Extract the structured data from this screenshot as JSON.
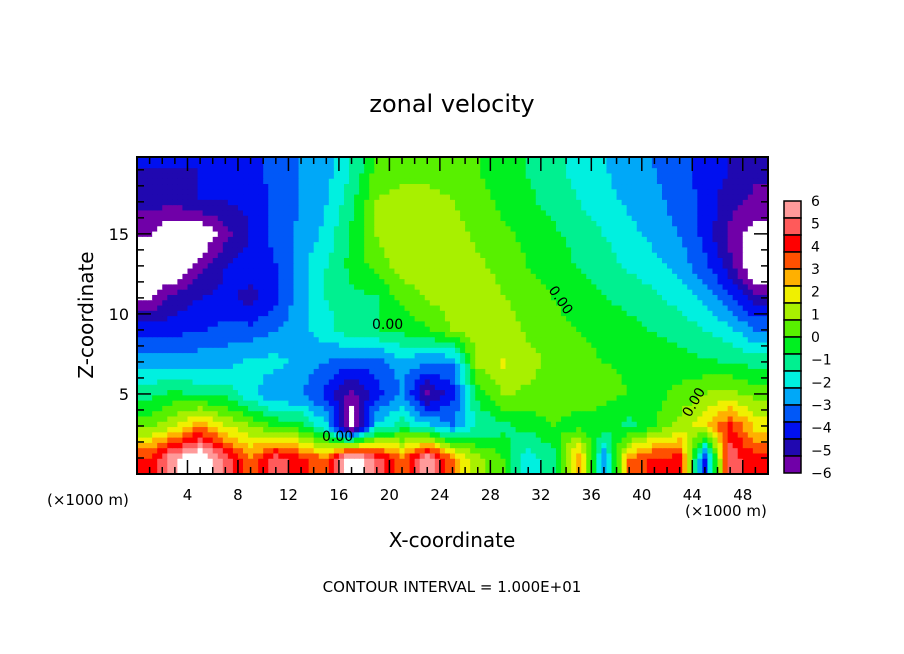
{
  "chart_data": {
    "type": "heatmap",
    "title": "zonal velocity",
    "xlabel": "X-coordinate",
    "ylabel": "Z-coordinate",
    "x_units": "(×1000 m)",
    "y_units": "(×1000 m)",
    "footnote": "CONTOUR INTERVAL = 1.000E+01",
    "xlim": [
      0,
      50
    ],
    "ylim": [
      0,
      19.8
    ],
    "x_ticks": [
      4,
      8,
      12,
      16,
      20,
      24,
      28,
      32,
      36,
      40,
      44,
      48
    ],
    "y_ticks": [
      5,
      10,
      15
    ],
    "grid_x": [
      1,
      3,
      5,
      7,
      9,
      11,
      13,
      15,
      17,
      19,
      21,
      23,
      25,
      27,
      29,
      31,
      33,
      35,
      37,
      39,
      41,
      43,
      45,
      47,
      49
    ],
    "grid_z": [
      19,
      17,
      15,
      13,
      11,
      9,
      7,
      5,
      3,
      1
    ],
    "values": [
      [
        -4.5,
        -4.5,
        -4.5,
        -4.5,
        -4,
        -3.5,
        -3,
        -2.5,
        -1.5,
        0.3,
        0.5,
        0.5,
        0.3,
        0,
        -0.3,
        -0.8,
        -1.2,
        -1.8,
        -2.2,
        -2.6,
        -3,
        -3.5,
        -4,
        -4.5,
        -5
      ],
      [
        -5,
        -5,
        -4.5,
        -4.5,
        -4.3,
        -3.5,
        -3,
        -2.3,
        -1,
        0.8,
        1,
        1,
        0.8,
        0.3,
        -0.2,
        -0.6,
        -1,
        -1.5,
        -2,
        -2.4,
        -2.8,
        -3.3,
        -4,
        -5,
        -5.5
      ],
      [
        -6,
        -7,
        -7,
        -5.5,
        -4.5,
        -3.5,
        -2.8,
        -2,
        -0.6,
        0.8,
        1.5,
        1.3,
        1,
        0.6,
        0.2,
        -0.2,
        -0.6,
        -1,
        -1.5,
        -2,
        -2.5,
        -3,
        -4,
        -5.5,
        -6.5
      ],
      [
        -7,
        -7,
        -5.5,
        -4.5,
        -4,
        -3.8,
        -2.5,
        -1.5,
        -0.5,
        0.3,
        1.2,
        1.3,
        1.2,
        0.9,
        0.5,
        0,
        -0.4,
        -0.8,
        -1.2,
        -1.6,
        -2,
        -2.6,
        -3.5,
        -5,
        -7
      ],
      [
        -6,
        -5,
        -4.5,
        -4.3,
        -4.8,
        -4,
        -2.5,
        -1.5,
        -1,
        -0.8,
        0.2,
        0.8,
        1.2,
        1.2,
        0.8,
        0.4,
        0,
        -0.4,
        -0.7,
        -1,
        -1.3,
        -1.8,
        -2.5,
        -3.5,
        -5
      ],
      [
        -4,
        -4,
        -3.8,
        -3.5,
        -3.5,
        -3,
        -2.5,
        -1.8,
        -1,
        -0.8,
        -0.5,
        -0.2,
        0.8,
        1.2,
        1.1,
        0.6,
        0.3,
        0,
        -0.3,
        -0.5,
        -0.8,
        -1,
        -1.5,
        -2,
        -3
      ],
      [
        -2.5,
        -2.5,
        -2.5,
        -2.5,
        -2,
        -2,
        -2.5,
        -3,
        -3.5,
        -3.5,
        -2.5,
        -3,
        -3,
        1,
        1.6,
        1,
        0.6,
        0.3,
        0,
        -0.1,
        -0.3,
        -0.5,
        -0.6,
        -0.8,
        -1
      ],
      [
        -1,
        -0.5,
        -1,
        -1,
        -2,
        -3,
        -3,
        -4,
        -5.5,
        -4,
        -3,
        -5.5,
        -4,
        -0.5,
        0.8,
        0.6,
        0.4,
        0.3,
        0.2,
        0,
        -0.3,
        0.3,
        0.8,
        1,
        0.5
      ],
      [
        0.5,
        1.5,
        3,
        1.5,
        0.8,
        0,
        -0.5,
        -2,
        -7,
        -2,
        -1,
        -2,
        -3,
        -1.5,
        -1,
        -0.5,
        0,
        -0.3,
        -0.3,
        -1,
        0,
        1,
        2,
        4,
        2
      ],
      [
        4,
        6,
        7,
        5,
        3,
        5,
        4,
        3,
        7,
        5,
        3,
        6,
        3,
        1,
        0,
        -2,
        -1,
        3,
        -3,
        3,
        4,
        4,
        -4,
        5,
        4
      ]
    ],
    "colorbar": {
      "ticks": [
        "6",
        "5",
        "4",
        "3",
        "2",
        "1",
        "0",
        "−1",
        "−2",
        "−3",
        "−4",
        "−5",
        "−6"
      ],
      "range": [
        -6,
        6
      ],
      "colors_top_to_bottom": [
        "#ff9a9a",
        "#ff5a5a",
        "#ff0000",
        "#ff5000",
        "#ffb000",
        "#f0f000",
        "#a8f000",
        "#58f000",
        "#00f020",
        "#00f090",
        "#00f0e0",
        "#00a8f8",
        "#0058f8",
        "#0010f0",
        "#2008b0",
        "#7000a8"
      ],
      "out_of_range_color": "#ffffff"
    },
    "contour_labels": [
      "0.00",
      "0.00",
      "0.00",
      "0.00"
    ]
  }
}
